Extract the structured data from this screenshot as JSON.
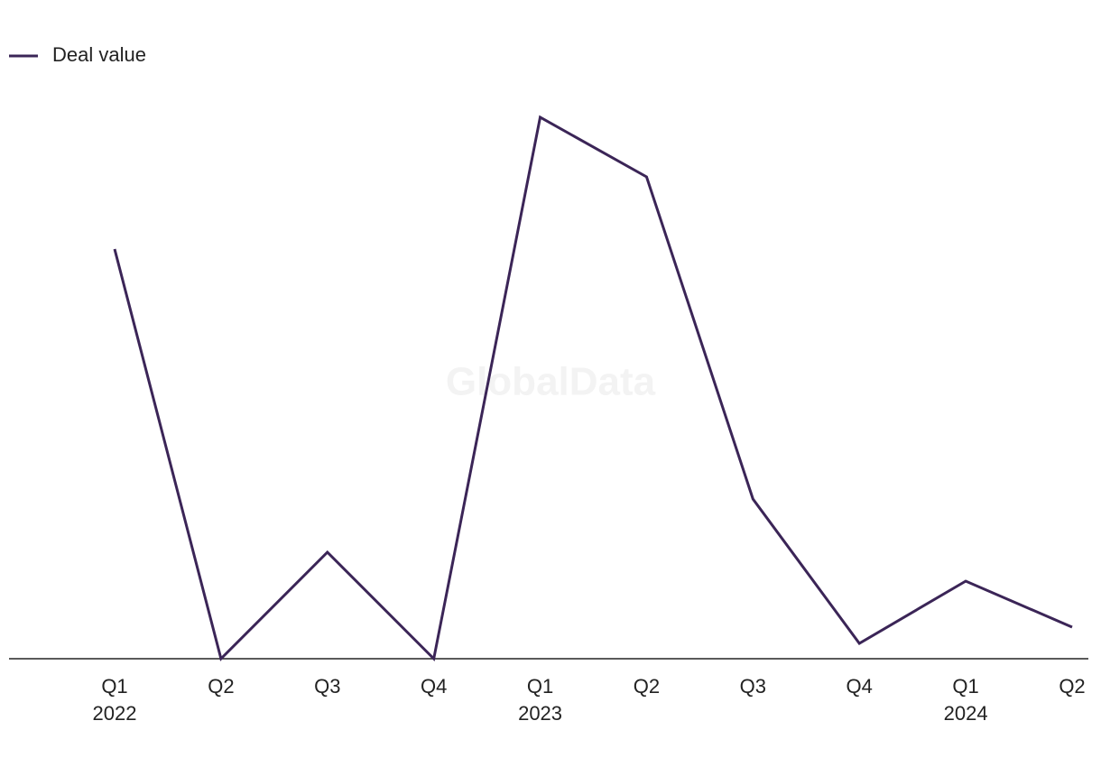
{
  "chart_data": {
    "type": "line",
    "watermark": "GlobalData",
    "categories": [
      [
        "Q1",
        "2022"
      ],
      [
        "Q2"
      ],
      [
        "Q3"
      ],
      [
        "Q4"
      ],
      [
        "Q1",
        "2023"
      ],
      [
        "Q2"
      ],
      [
        "Q3"
      ],
      [
        "Q4"
      ],
      [
        "Q1",
        "2024"
      ],
      [
        "Q2"
      ]
    ],
    "series": [
      {
        "name": "Deal value",
        "color": "#3b2557",
        "values": [
          454,
          0,
          118,
          0,
          600,
          534,
          177,
          17,
          86,
          35
        ]
      }
    ],
    "ylim": [
      0,
      620
    ]
  }
}
